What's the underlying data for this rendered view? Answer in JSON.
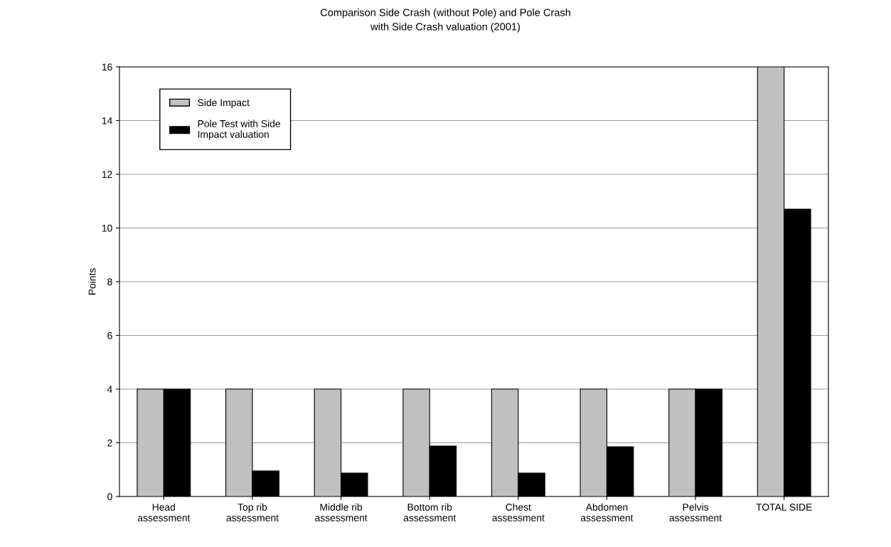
{
  "chart_data": {
    "type": "bar",
    "title": "Comparison Side Crash (without Pole) and Pole Crash\nwith Side Crash valuation (2001)",
    "ylabel": "Points",
    "categories": [
      "Head\nassessment",
      "Top rib\nassessment",
      "Middle rib\nassessment",
      "Bottom rib\nassessment",
      "Chest\nassessment",
      "Abdomen\nassessment",
      "Pelvis\nassessment",
      "TOTAL SIDE"
    ],
    "series": [
      {
        "name": "Side Impact",
        "color": "#c0c0c0",
        "values": [
          4,
          4,
          4,
          4,
          4,
          4,
          4,
          16
        ]
      },
      {
        "name": "Pole Test with Side\nImpact valuation",
        "color": "#000000",
        "values": [
          4,
          0.95,
          0.87,
          1.88,
          0.87,
          1.85,
          4,
          10.7
        ]
      }
    ],
    "ylim": [
      0,
      16
    ],
    "yticks": [
      0,
      2,
      4,
      6,
      8,
      10,
      12,
      14,
      16
    ],
    "grid": "y",
    "legend": "top left"
  }
}
